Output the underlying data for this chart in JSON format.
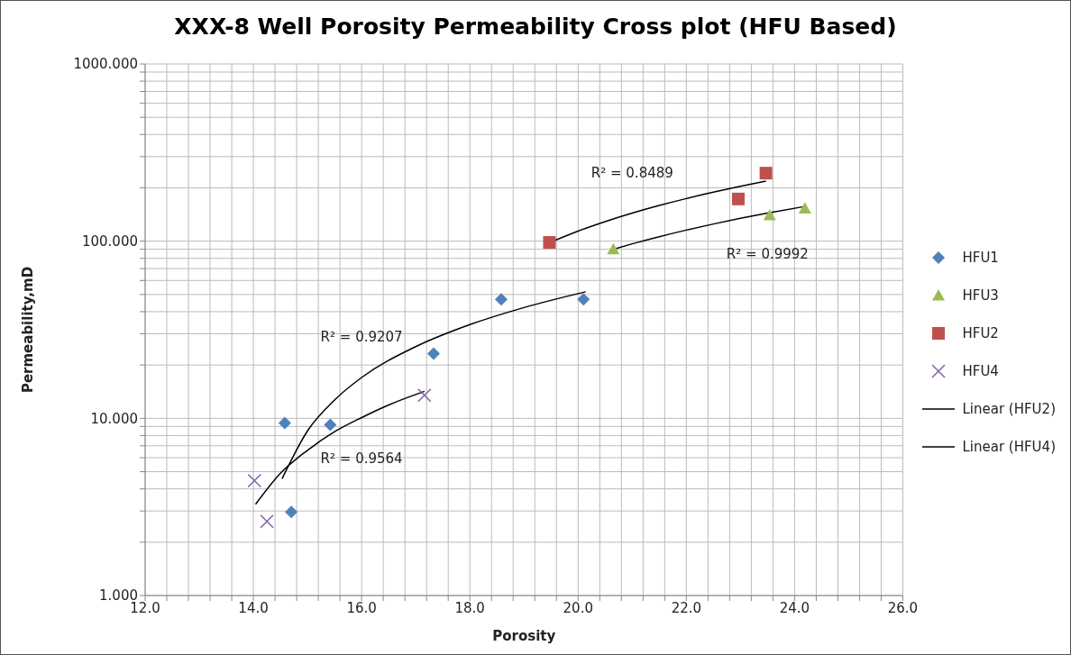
{
  "chart_data": {
    "type": "scatter",
    "title": "XXX-8 Well Porosity Permeability Cross plot (HFU Based)",
    "xlabel": "Porosity",
    "ylabel": "Permeability,mD",
    "log": "y",
    "grid": true,
    "legend": "right",
    "xlim": [
      12,
      26
    ],
    "ylim": [
      1,
      1000
    ],
    "xticks": [
      {
        "value": 12,
        "label": "12.0"
      },
      {
        "value": 12.4,
        "label": null
      },
      {
        "value": 12.8,
        "label": null
      },
      {
        "value": 13.2,
        "label": null
      },
      {
        "value": 13.6,
        "label": null
      },
      {
        "value": 14,
        "label": "14.0"
      },
      {
        "value": 14.4,
        "label": null
      },
      {
        "value": 14.8,
        "label": null
      },
      {
        "value": 15.2,
        "label": null
      },
      {
        "value": 15.6,
        "label": null
      },
      {
        "value": 16,
        "label": "16.0"
      },
      {
        "value": 16.4,
        "label": null
      },
      {
        "value": 16.8,
        "label": null
      },
      {
        "value": 17.2,
        "label": null
      },
      {
        "value": 17.6,
        "label": null
      },
      {
        "value": 18,
        "label": "18.0"
      },
      {
        "value": 18.4,
        "label": null
      },
      {
        "value": 18.8,
        "label": null
      },
      {
        "value": 19.2,
        "label": null
      },
      {
        "value": 19.6,
        "label": null
      },
      {
        "value": 20,
        "label": "20.0"
      },
      {
        "value": 20.4,
        "label": null
      },
      {
        "value": 20.8,
        "label": null
      },
      {
        "value": 21.2,
        "label": null
      },
      {
        "value": 21.6,
        "label": null
      },
      {
        "value": 22,
        "label": "22.0"
      },
      {
        "value": 22.4,
        "label": null
      },
      {
        "value": 22.8,
        "label": null
      },
      {
        "value": 23.2,
        "label": null
      },
      {
        "value": 23.6,
        "label": null
      },
      {
        "value": 24,
        "label": "24.0"
      },
      {
        "value": 24.4,
        "label": null
      },
      {
        "value": 24.8,
        "label": null
      },
      {
        "value": 25.2,
        "label": null
      },
      {
        "value": 25.6,
        "label": null
      },
      {
        "value": 26,
        "label": "26.0"
      }
    ],
    "yticks": [
      {
        "value": 1,
        "label": "1.000"
      },
      {
        "value": 2,
        "label": null
      },
      {
        "value": 3,
        "label": null
      },
      {
        "value": 4,
        "label": null
      },
      {
        "value": 5,
        "label": null
      },
      {
        "value": 6,
        "label": null
      },
      {
        "value": 7,
        "label": null
      },
      {
        "value": 8,
        "label": null
      },
      {
        "value": 9,
        "label": null
      },
      {
        "value": 10,
        "label": "10.000"
      },
      {
        "value": 20,
        "label": null
      },
      {
        "value": 30,
        "label": null
      },
      {
        "value": 40,
        "label": null
      },
      {
        "value": 50,
        "label": null
      },
      {
        "value": 60,
        "label": null
      },
      {
        "value": 70,
        "label": null
      },
      {
        "value": 80,
        "label": null
      },
      {
        "value": 90,
        "label": null
      },
      {
        "value": 100,
        "label": "100.000"
      },
      {
        "value": 200,
        "label": null
      },
      {
        "value": 300,
        "label": null
      },
      {
        "value": 400,
        "label": null
      },
      {
        "value": 500,
        "label": null
      },
      {
        "value": 600,
        "label": null
      },
      {
        "value": 700,
        "label": null
      },
      {
        "value": 800,
        "label": null
      },
      {
        "value": 900,
        "label": null
      },
      {
        "value": 1000,
        "label": "1000.000"
      }
    ],
    "series": [
      {
        "name": "HFU1",
        "type": "scatter",
        "marker": "diamond",
        "color": "#4f81bd",
        "x": [
          14.58,
          14.7,
          15.42,
          17.33,
          18.58,
          20.1
        ],
        "values": [
          9.4,
          2.96,
          9.2,
          23.2,
          46.9,
          46.9
        ]
      },
      {
        "name": "HFU3",
        "type": "scatter",
        "marker": "triangle",
        "color": "#9bbb59",
        "x": [
          20.65,
          23.54,
          24.19
        ],
        "values": [
          90,
          140,
          153
        ]
      },
      {
        "name": "HFU2",
        "type": "scatter",
        "marker": "square",
        "color": "#c0504d",
        "x": [
          19.47,
          22.96,
          23.47
        ],
        "values": [
          98.4,
          173,
          242
        ]
      },
      {
        "name": "HFU4",
        "type": "scatter",
        "marker": "cross",
        "color": "#8064a2",
        "x": [
          14.02,
          14.25,
          17.16
        ],
        "values": [
          4.45,
          2.62,
          13.5
        ]
      },
      {
        "name": "Linear (HFU2)",
        "type": "line",
        "marker": "none",
        "color": "#000000",
        "x": [
          19.47,
          20,
          20.5,
          21,
          21.5,
          22,
          22.5,
          23,
          23.47
        ],
        "values": [
          98,
          114,
          129,
          144,
          159,
          174,
          189,
          204,
          218
        ]
      },
      {
        "name": "Linear (HFU4)",
        "type": "line",
        "marker": "none",
        "color": "#000000",
        "x": [
          14.04,
          14.5,
          15,
          15.5,
          16,
          16.5,
          17.16
        ],
        "values": [
          3.27,
          4.9,
          6.6,
          8.4,
          10.1,
          11.9,
          14.2
        ]
      },
      {
        "type": "line",
        "marker": "none",
        "color": "#000000",
        "x": [
          14.53,
          15,
          15.5,
          16,
          17,
          18,
          19,
          20.14
        ],
        "values": [
          4.56,
          8.5,
          12.7,
          17,
          25.4,
          33.8,
          42.2,
          51.8
        ]
      },
      {
        "type": "line",
        "marker": "none",
        "color": "#000000",
        "x": [
          20.65,
          21,
          21.5,
          22,
          22.5,
          23,
          23.5,
          24.19
        ],
        "values": [
          90,
          96.6,
          106,
          115.5,
          125,
          134.5,
          144,
          157
        ]
      }
    ],
    "annotations": [
      {
        "text": "R² = 0.8489",
        "x": 21,
        "y": 144
      },
      {
        "text": "R² = 0.9992",
        "x": 23.5,
        "y": 144
      },
      {
        "text": "R² = 0.9207",
        "x": 16,
        "y": 17
      },
      {
        "text": "R² = 0.9564",
        "x": 16,
        "y": 10.1
      }
    ]
  }
}
